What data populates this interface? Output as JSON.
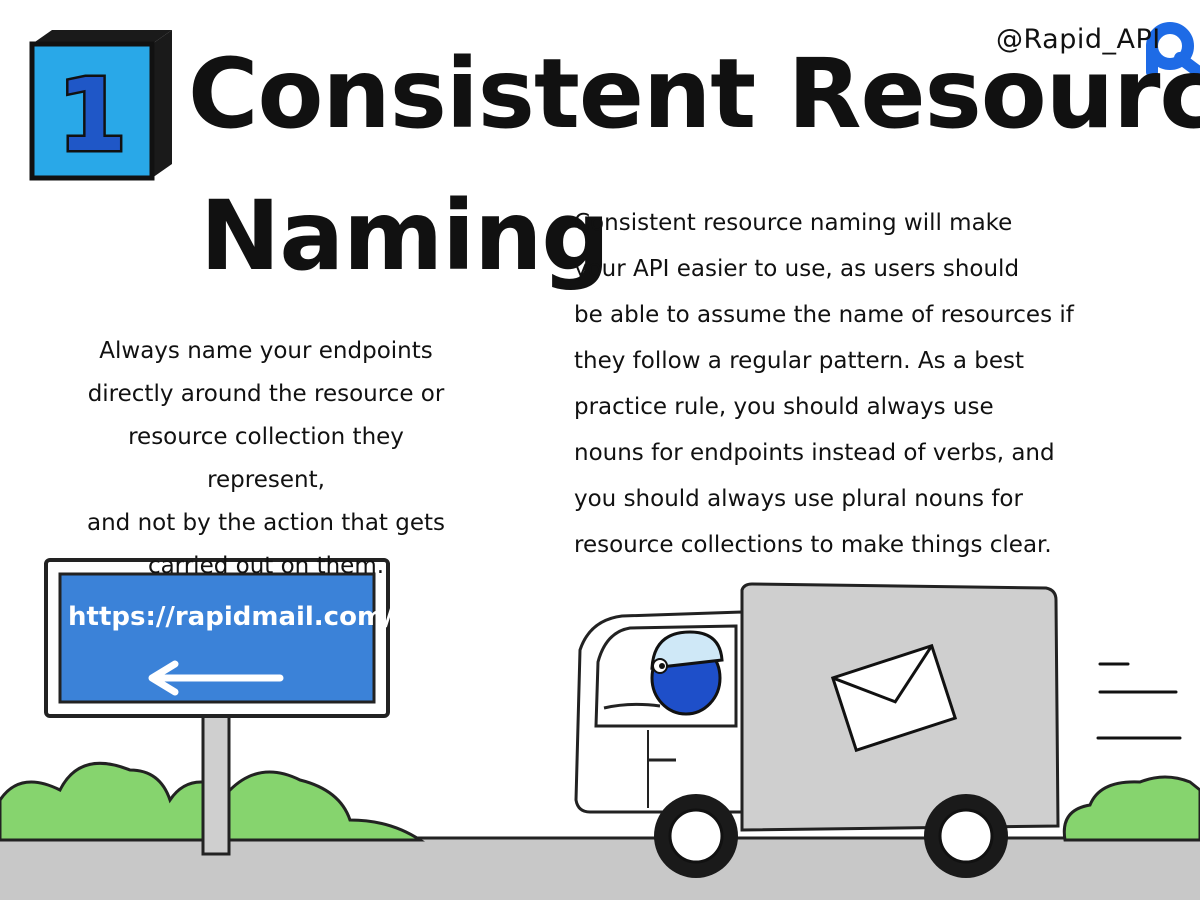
{
  "header": {
    "step_number": "1",
    "title_line1": "Consistent Resource",
    "title_line2": "Naming",
    "handle": "@Rapid_API",
    "logo_icon": "rapid-api-logo-icon",
    "logo_color": "#1e6be6"
  },
  "left_paragraph": {
    "lines": [
      "Always name your endpoints",
      "directly around the resource or",
      "resource collection they represent,",
      "and not by the action that gets",
      "carried out on them."
    ]
  },
  "right_paragraph": {
    "lines": [
      "Consistent resource naming will make",
      "your API easier to use, as users should",
      "be able to assume the name of resources if",
      "they follow a regular pattern. As a best",
      "practice rule, you should always use",
      "nouns for endpoints instead of verbs, and",
      "you should always use plural nouns for",
      "resource collections to make things clear."
    ]
  },
  "sign": {
    "url": "https://rapidmail.com/posts",
    "arrow_icon": "left-arrow-icon",
    "color": "#3b82d8"
  },
  "truck": {
    "envelope_icon": "envelope-icon",
    "body_color": "#cfcfcf",
    "driver_color": "#1e4fc9"
  },
  "colors": {
    "badge": "#29a8e8",
    "badge_number": "#1f57c7",
    "bush": "#86d46e",
    "road": "#c8c8c8"
  }
}
